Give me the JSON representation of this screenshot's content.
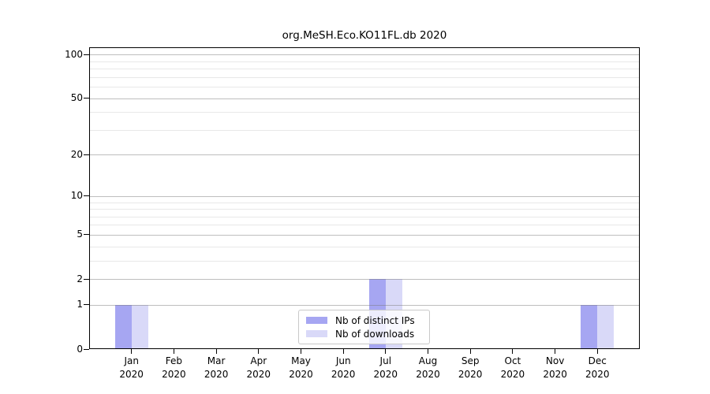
{
  "title": "org.MeSH.Eco.KO11FL.db 2020",
  "chart_data": {
    "type": "bar",
    "title": "org.MeSH.Eco.KO11FL.db 2020",
    "categories": [
      "Jan 2020",
      "Feb 2020",
      "Mar 2020",
      "Apr 2020",
      "May 2020",
      "Jun 2020",
      "Jul 2020",
      "Aug 2020",
      "Sep 2020",
      "Oct 2020",
      "Nov 2020",
      "Dec 2020"
    ],
    "series": [
      {
        "name": "Nb of distinct IPs",
        "color": "#a6a6f2",
        "values": [
          1,
          0,
          0,
          0,
          0,
          0,
          2,
          0,
          0,
          0,
          0,
          1
        ]
      },
      {
        "name": "Nb of downloads",
        "color": "#d9d9f8",
        "values": [
          1,
          0,
          0,
          0,
          0,
          0,
          2,
          0,
          0,
          0,
          0,
          1
        ]
      }
    ],
    "xlabel": "",
    "ylabel": "",
    "yscale": "log1p",
    "y_ticks": [
      0,
      1,
      2,
      5,
      10,
      20,
      50,
      100
    ],
    "y_minor_ticks": [
      3,
      4,
      6,
      7,
      8,
      9,
      30,
      40,
      60,
      70,
      80,
      90
    ],
    "ylim": [
      0,
      112
    ],
    "grid": true,
    "legend_position": "bottom-center"
  }
}
